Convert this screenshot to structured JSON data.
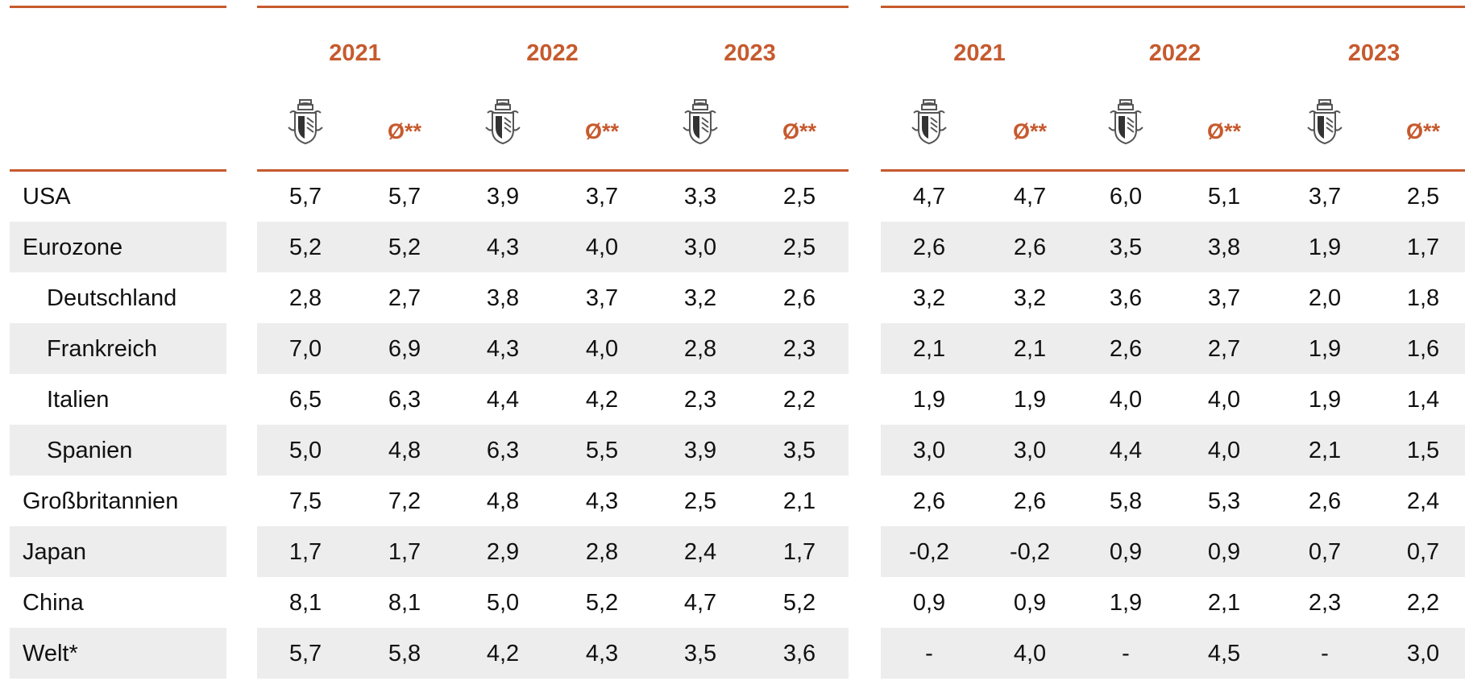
{
  "table": {
    "years": [
      "2021",
      "2022",
      "2023",
      "2021",
      "2022",
      "2023"
    ],
    "average_label": "Ø**",
    "rows": [
      {
        "label": "USA",
        "indent": false,
        "values": [
          "5,7",
          "5,7",
          "3,9",
          "3,7",
          "3,3",
          "2,5",
          "4,7",
          "4,7",
          "6,0",
          "5,1",
          "3,7",
          "2,5"
        ]
      },
      {
        "label": "Eurozone",
        "indent": false,
        "values": [
          "5,2",
          "5,2",
          "4,3",
          "4,0",
          "3,0",
          "2,5",
          "2,6",
          "2,6",
          "3,5",
          "3,8",
          "1,9",
          "1,7"
        ]
      },
      {
        "label": "Deutschland",
        "indent": true,
        "values": [
          "2,8",
          "2,7",
          "3,8",
          "3,7",
          "3,2",
          "2,6",
          "3,2",
          "3,2",
          "3,6",
          "3,7",
          "2,0",
          "1,8"
        ]
      },
      {
        "label": "Frankreich",
        "indent": true,
        "values": [
          "7,0",
          "6,9",
          "4,3",
          "4,0",
          "2,8",
          "2,3",
          "2,1",
          "2,1",
          "2,6",
          "2,7",
          "1,9",
          "1,6"
        ]
      },
      {
        "label": "Italien",
        "indent": true,
        "values": [
          "6,5",
          "6,3",
          "4,4",
          "4,2",
          "2,3",
          "2,2",
          "1,9",
          "1,9",
          "4,0",
          "4,0",
          "1,9",
          "1,4"
        ]
      },
      {
        "label": "Spanien",
        "indent": true,
        "values": [
          "5,0",
          "4,8",
          "6,3",
          "5,5",
          "3,9",
          "3,5",
          "3,0",
          "3,0",
          "4,4",
          "4,0",
          "2,1",
          "1,5"
        ]
      },
      {
        "label": "Großbritannien",
        "indent": false,
        "values": [
          "7,5",
          "7,2",
          "4,8",
          "4,3",
          "2,5",
          "2,1",
          "2,6",
          "2,6",
          "5,8",
          "5,3",
          "2,6",
          "2,4"
        ]
      },
      {
        "label": "Japan",
        "indent": false,
        "values": [
          "1,7",
          "1,7",
          "2,9",
          "2,8",
          "2,4",
          "1,7",
          "-0,2",
          "-0,2",
          "0,9",
          "0,9",
          "0,7",
          "0,7"
        ]
      },
      {
        "label": "China",
        "indent": false,
        "values": [
          "8,1",
          "8,1",
          "5,0",
          "5,2",
          "4,7",
          "5,2",
          "0,9",
          "0,9",
          "1,9",
          "2,1",
          "2,3",
          "2,2"
        ]
      },
      {
        "label": "Welt*",
        "indent": false,
        "values": [
          "5,7",
          "5,8",
          "4,2",
          "4,3",
          "3,5",
          "3,6",
          "-",
          "4,0",
          "-",
          "4,5",
          "-",
          "3,0"
        ]
      }
    ]
  }
}
